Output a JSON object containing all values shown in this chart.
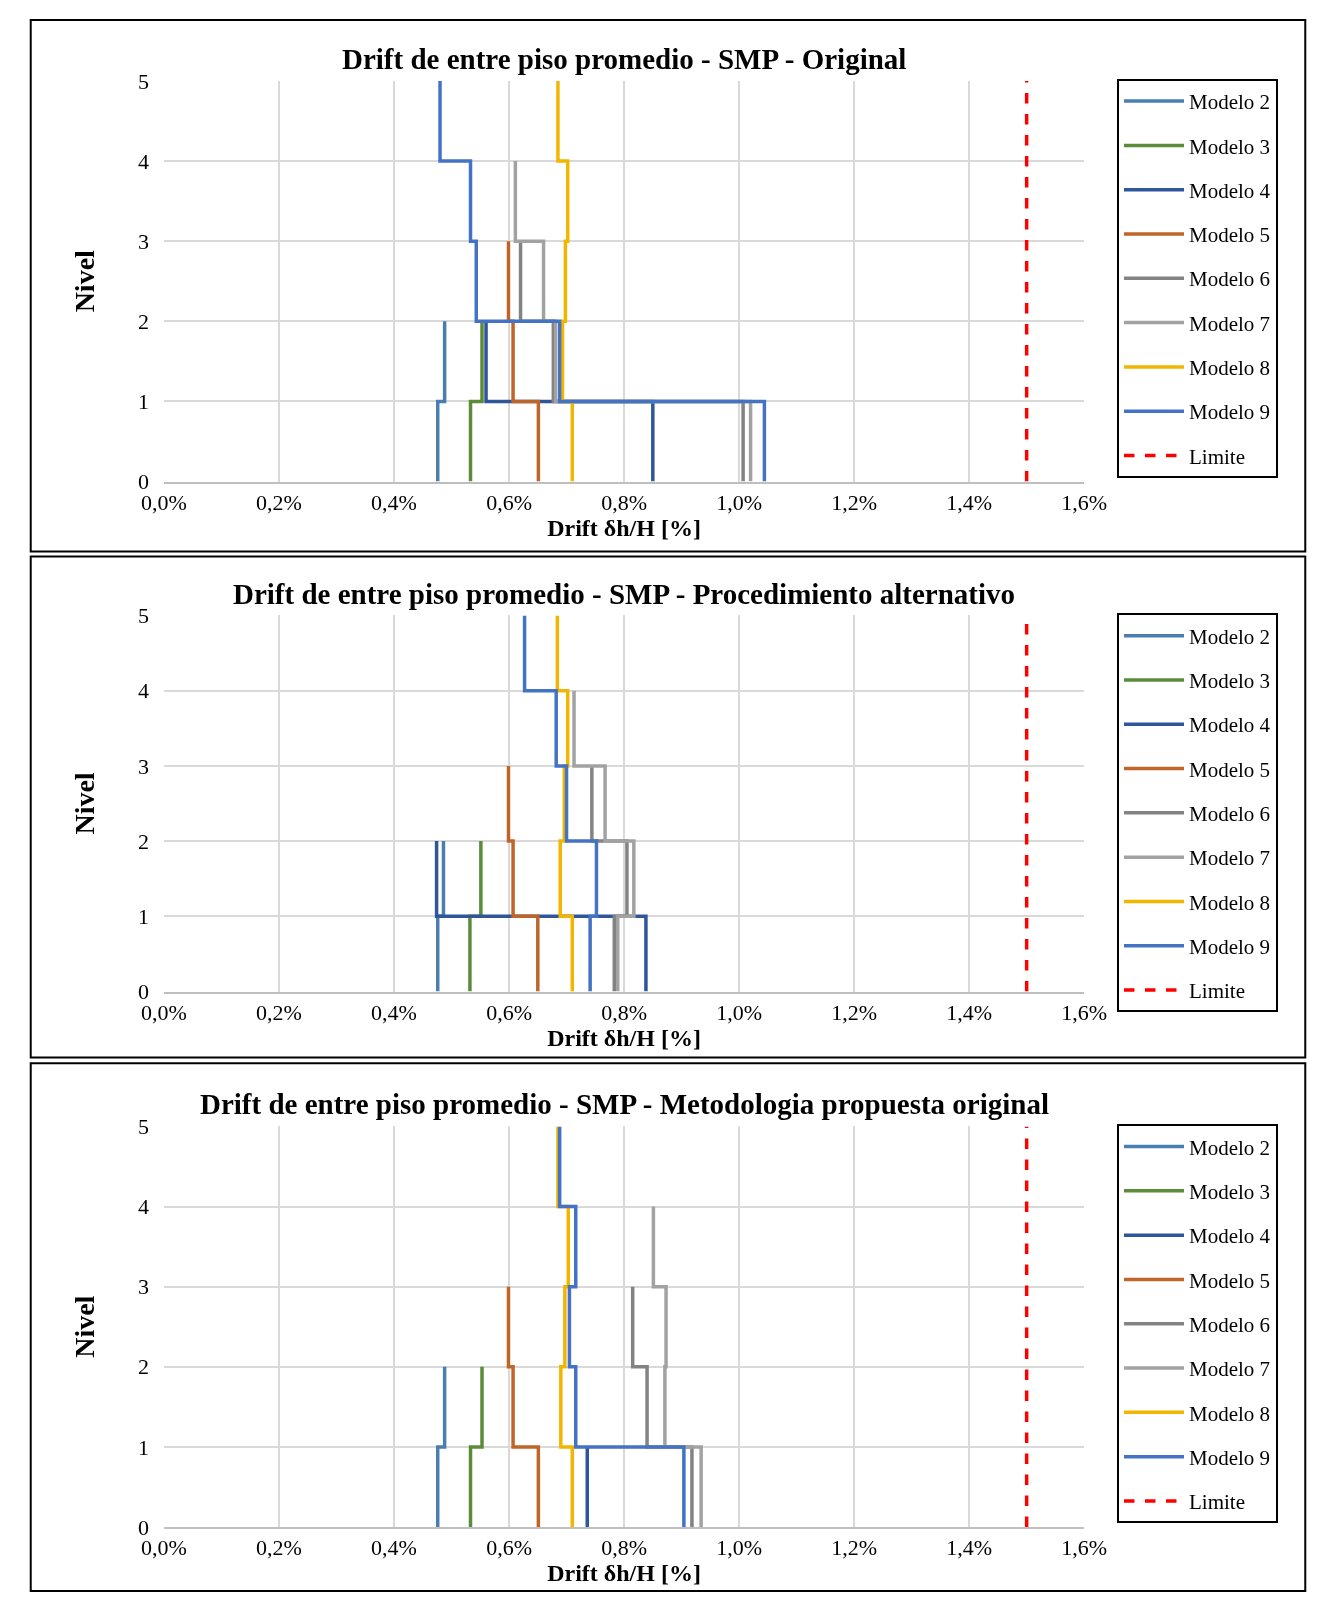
{
  "chart_data": [
    {
      "type": "step",
      "title": "Drift de entre piso promedio - SMP - Original",
      "xlabel": "Drift δh/H [%]",
      "ylabel": "Nivel",
      "xlim": [
        0,
        1.6
      ],
      "xticks": [
        {
          "value": 0,
          "label": "0,0%"
        },
        {
          "value": 0.2,
          "label": "0,2%"
        },
        {
          "value": 0.4,
          "label": "0,4%"
        },
        {
          "value": 0.6,
          "label": "0,6%"
        },
        {
          "value": 0.8,
          "label": "0,8%"
        },
        {
          "value": 1.0,
          "label": "1,0%"
        },
        {
          "value": 1.2,
          "label": "1,2%"
        },
        {
          "value": 1.4,
          "label": "1,4%"
        },
        {
          "value": 1.6,
          "label": "1,6%"
        }
      ],
      "ylim": [
        0,
        5
      ],
      "yticks": [
        0,
        1,
        2,
        3,
        4,
        5
      ],
      "grid": true,
      "legend": "right",
      "marker": "none",
      "line_style": "solid",
      "series": [
        {
          "name": "Modelo 2",
          "color": "#4a7eb0",
          "x": [
            0.476,
            0.488,
            0.488
          ],
          "values": [
            0,
            1,
            2
          ]
        },
        {
          "name": "Modelo 3",
          "color": "#5b8c3a",
          "x": [
            0.533,
            0.553,
            0.553
          ],
          "values": [
            0,
            1,
            2
          ]
        },
        {
          "name": "Modelo 4",
          "color": "#2f569a",
          "x": [
            0.85,
            0.56,
            0.56
          ],
          "values": [
            0,
            1,
            2
          ]
        },
        {
          "name": "Modelo 5",
          "color": "#c0652a",
          "x": [
            0.651,
            0.607,
            0.599,
            0.599
          ],
          "values": [
            0,
            1,
            2,
            3
          ]
        },
        {
          "name": "Modelo 6",
          "color": "#838383",
          "x": [
            1.007,
            0.677,
            0.62,
            0.62
          ],
          "values": [
            0,
            1,
            2,
            3
          ]
        },
        {
          "name": "Modelo 7",
          "color": "#a2a2a2",
          "x": [
            1.02,
            0.681,
            0.66,
            0.611,
            0.611
          ],
          "values": [
            0,
            1,
            2,
            3,
            4
          ]
        },
        {
          "name": "Modelo 8",
          "color": "#f2b600",
          "x": [
            0.71,
            0.693,
            0.698,
            0.702,
            0.685,
            0.685
          ],
          "values": [
            0,
            1,
            2,
            3,
            4,
            5
          ]
        },
        {
          "name": "Modelo 9",
          "color": "#4472c4",
          "x": [
            1.044,
            0.688,
            0.543,
            0.533,
            0.48,
            0.48
          ],
          "values": [
            0,
            1,
            2,
            3,
            4,
            5
          ]
        },
        {
          "name": "Limite",
          "type": "line",
          "color": "#ff0000",
          "line_style": "dashed",
          "x": [
            1.5,
            1.5
          ],
          "values": [
            0,
            5
          ]
        }
      ]
    },
    {
      "type": "step",
      "title": "Drift de entre piso promedio - SMP - Procedimiento alternativo",
      "xlabel": "Drift δh/H [%]",
      "ylabel": "Nivel",
      "xlim": [
        0,
        1.6
      ],
      "xticks": [
        {
          "value": 0,
          "label": "0,0%"
        },
        {
          "value": 0.2,
          "label": "0,2%"
        },
        {
          "value": 0.4,
          "label": "0,4%"
        },
        {
          "value": 0.6,
          "label": "0,6%"
        },
        {
          "value": 0.8,
          "label": "0,8%"
        },
        {
          "value": 1.0,
          "label": "1,0%"
        },
        {
          "value": 1.2,
          "label": "1,2%"
        },
        {
          "value": 1.4,
          "label": "1,4%"
        },
        {
          "value": 1.6,
          "label": "1,6%"
        }
      ],
      "ylim": [
        0,
        5
      ],
      "yticks": [
        0,
        1,
        2,
        3,
        4,
        5
      ],
      "grid": true,
      "legend": "right",
      "marker": "none",
      "line_style": "solid",
      "series": [
        {
          "name": "Modelo 2",
          "color": "#4a7eb0",
          "x": [
            0.476,
            0.486,
            0.486
          ],
          "values": [
            0,
            1,
            2
          ]
        },
        {
          "name": "Modelo 3",
          "color": "#5b8c3a",
          "x": [
            0.532,
            0.551,
            0.551
          ],
          "values": [
            0,
            1,
            2
          ]
        },
        {
          "name": "Modelo 4",
          "color": "#2f569a",
          "x": [
            0.838,
            0.474,
            0.474
          ],
          "values": [
            0,
            1,
            2
          ]
        },
        {
          "name": "Modelo 5",
          "color": "#c0652a",
          "x": [
            0.65,
            0.607,
            0.599,
            0.599
          ],
          "values": [
            0,
            1,
            2,
            3
          ]
        },
        {
          "name": "Modelo 6",
          "color": "#838383",
          "x": [
            0.783,
            0.805,
            0.744,
            0.744
          ],
          "values": [
            0,
            1,
            2,
            3
          ]
        },
        {
          "name": "Modelo 7",
          "color": "#a2a2a2",
          "x": [
            0.789,
            0.817,
            0.767,
            0.713,
            0.713
          ],
          "values": [
            0,
            1,
            2,
            3,
            4
          ]
        },
        {
          "name": "Modelo 8",
          "color": "#f2b600",
          "x": [
            0.71,
            0.689,
            0.696,
            0.702,
            0.684,
            0.684
          ],
          "values": [
            0,
            1,
            2,
            3,
            4,
            5
          ]
        },
        {
          "name": "Modelo 9",
          "color": "#4472c4",
          "x": [
            0.741,
            0.752,
            0.7,
            0.682,
            0.627,
            0.627
          ],
          "values": [
            0,
            1,
            2,
            3,
            4,
            5
          ]
        },
        {
          "name": "Limite",
          "type": "line",
          "color": "#ff0000",
          "line_style": "dashed",
          "x": [
            1.5,
            1.5
          ],
          "values": [
            0,
            5
          ]
        }
      ]
    },
    {
      "type": "step",
      "title": "Drift de entre piso promedio - SMP - Metodologia propuesta original",
      "xlabel": "Drift δh/H [%]",
      "ylabel": "Nivel",
      "xlim": [
        0,
        1.6
      ],
      "xticks": [
        {
          "value": 0,
          "label": "0,0%"
        },
        {
          "value": 0.2,
          "label": "0,2%"
        },
        {
          "value": 0.4,
          "label": "0,4%"
        },
        {
          "value": 0.6,
          "label": "0,6%"
        },
        {
          "value": 0.8,
          "label": "0,8%"
        },
        {
          "value": 1.0,
          "label": "1,0%"
        },
        {
          "value": 1.2,
          "label": "1,2%"
        },
        {
          "value": 1.4,
          "label": "1,4%"
        },
        {
          "value": 1.6,
          "label": "1,6%"
        }
      ],
      "ylim": [
        0,
        5
      ],
      "yticks": [
        0,
        1,
        2,
        3,
        4,
        5
      ],
      "grid": true,
      "legend": "right",
      "marker": "none",
      "line_style": "solid",
      "series": [
        {
          "name": "Modelo 2",
          "color": "#4a7eb0",
          "x": [
            0.476,
            0.488,
            0.488
          ],
          "values": [
            0,
            1,
            2
          ]
        },
        {
          "name": "Modelo 3",
          "color": "#5b8c3a",
          "x": [
            0.533,
            0.553,
            0.553
          ],
          "values": [
            0,
            1,
            2
          ]
        },
        {
          "name": "Modelo 4",
          "color": "#2f569a",
          "x": [
            0.736,
            0.736
          ],
          "values": [
            0,
            1
          ]
        },
        {
          "name": "Modelo 5",
          "color": "#c0652a",
          "x": [
            0.651,
            0.607,
            0.599,
            0.599
          ],
          "values": [
            0,
            1,
            2,
            3
          ]
        },
        {
          "name": "Modelo 6",
          "color": "#838383",
          "x": [
            0.918,
            0.84,
            0.815,
            0.815
          ],
          "values": [
            0,
            1,
            2,
            3
          ]
        },
        {
          "name": "Modelo 7",
          "color": "#a2a2a2",
          "x": [
            0.934,
            0.871,
            0.873,
            0.851,
            0.851
          ],
          "values": [
            0,
            1,
            2,
            3,
            4
          ]
        },
        {
          "name": "Modelo 8",
          "color": "#f2b600",
          "x": [
            0.71,
            0.69,
            0.697,
            0.703,
            0.685,
            0.685
          ],
          "values": [
            0,
            1,
            2,
            3,
            4,
            5
          ]
        },
        {
          "name": "Modelo 9",
          "color": "#4472c4",
          "x": [
            0.904,
            0.716,
            0.705,
            0.716,
            0.688,
            0.688
          ],
          "values": [
            0,
            1,
            2,
            3,
            4,
            5
          ]
        },
        {
          "name": "Limite",
          "type": "line",
          "color": "#ff0000",
          "line_style": "dashed",
          "x": [
            1.5,
            1.5
          ],
          "values": [
            0,
            5
          ]
        }
      ]
    }
  ]
}
